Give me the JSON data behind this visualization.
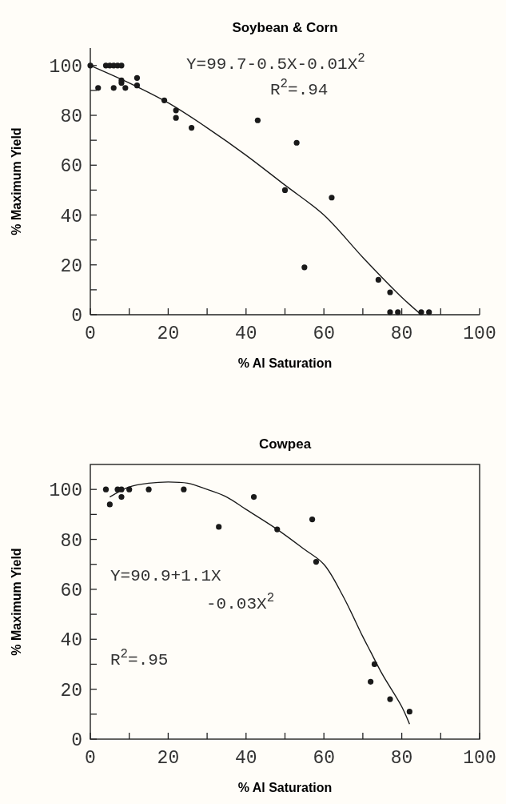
{
  "chart_data": [
    {
      "type": "scatter",
      "title": "Soybean & Corn",
      "xlabel": "% Al Saturation",
      "ylabel": "% Maximum Yield",
      "xlim": [
        0,
        100
      ],
      "ylim": [
        0,
        107
      ],
      "xticks": [
        0,
        {
          "value": 10,
          "label": null
        },
        20,
        {
          "value": 30,
          "label": null
        },
        40,
        {
          "value": 50,
          "label": null
        },
        60,
        {
          "value": 70,
          "label": null
        },
        80,
        {
          "value": 90,
          "label": null
        },
        100
      ],
      "yticks": [
        0,
        {
          "value": 10,
          "label": null
        },
        20,
        {
          "value": 30,
          "label": null
        },
        40,
        {
          "value": 50,
          "label": null
        },
        60,
        {
          "value": 70,
          "label": null
        },
        80,
        {
          "value": 90,
          "label": null
        },
        100
      ],
      "grid": false,
      "marker": "circle",
      "annotations": [
        "Y=99.7-0.5X-0.01X$^{2}$",
        "R$^{2}$=.94"
      ],
      "series": [
        {
          "color": "#1a1a1a",
          "x": [
            0,
            2,
            4,
            5,
            6,
            7,
            8,
            6,
            8,
            9,
            8,
            12,
            12,
            19,
            22,
            22,
            26,
            43,
            50,
            53,
            55,
            62,
            74,
            77,
            77,
            79,
            85,
            87
          ],
          "values": [
            100,
            91,
            100,
            100,
            100,
            100,
            100,
            91,
            93,
            91,
            94,
            95,
            92,
            86,
            82,
            79,
            75,
            78,
            50,
            69,
            19,
            47,
            14,
            9,
            1,
            1,
            1,
            1
          ]
        },
        {
          "type": "line",
          "color": "#1a1a1a",
          "line_style": "solid",
          "marker": "none",
          "x": [
            0,
            10,
            20,
            30,
            40,
            50,
            60,
            70,
            80,
            85
          ],
          "values": [
            100,
            93,
            85,
            75,
            64,
            52,
            40,
            23,
            7,
            0
          ]
        }
      ]
    },
    {
      "type": "scatter",
      "title": "Cowpea",
      "xlabel": "% Al Saturation",
      "ylabel": "% Maximum Yield",
      "xlim": [
        0,
        100
      ],
      "ylim": [
        0,
        110
      ],
      "xticks": [
        0,
        {
          "value": 10,
          "label": null
        },
        20,
        {
          "value": 30,
          "label": null
        },
        40,
        {
          "value": 50,
          "label": null
        },
        60,
        {
          "value": 70,
          "label": null
        },
        80,
        {
          "value": 90,
          "label": null
        },
        100
      ],
      "yticks": [
        0,
        {
          "value": 10,
          "label": null
        },
        20,
        {
          "value": 30,
          "label": null
        },
        40,
        {
          "value": 50,
          "label": null
        },
        60,
        {
          "value": 70,
          "label": null
        },
        80,
        {
          "value": 90,
          "label": null
        },
        100
      ],
      "grid": false,
      "marker": "circle",
      "annotations": [
        "Y=90.9+1.1X",
        "-0.03X$^{2}$",
        "R$^{2}$=.95"
      ],
      "series": [
        {
          "color": "#1a1a1a",
          "x": [
            4,
            5,
            7,
            8,
            8,
            10,
            15,
            24,
            33,
            42,
            48,
            57,
            58,
            72,
            73,
            77,
            82
          ],
          "values": [
            100,
            94,
            100,
            100,
            97,
            100,
            100,
            100,
            85,
            97,
            84,
            88,
            71,
            23,
            30,
            16,
            11
          ]
        },
        {
          "type": "line",
          "color": "#1a1a1a",
          "line_style": "solid",
          "marker": "none",
          "x": [
            5,
            10,
            15,
            20,
            25,
            30,
            35,
            40,
            48,
            55,
            60,
            65,
            70,
            72,
            75,
            80,
            82
          ],
          "values": [
            97,
            101,
            102.5,
            103,
            102.5,
            100,
            97,
            92,
            84,
            76,
            70,
            57,
            41,
            35,
            26,
            13,
            6
          ]
        }
      ]
    }
  ]
}
